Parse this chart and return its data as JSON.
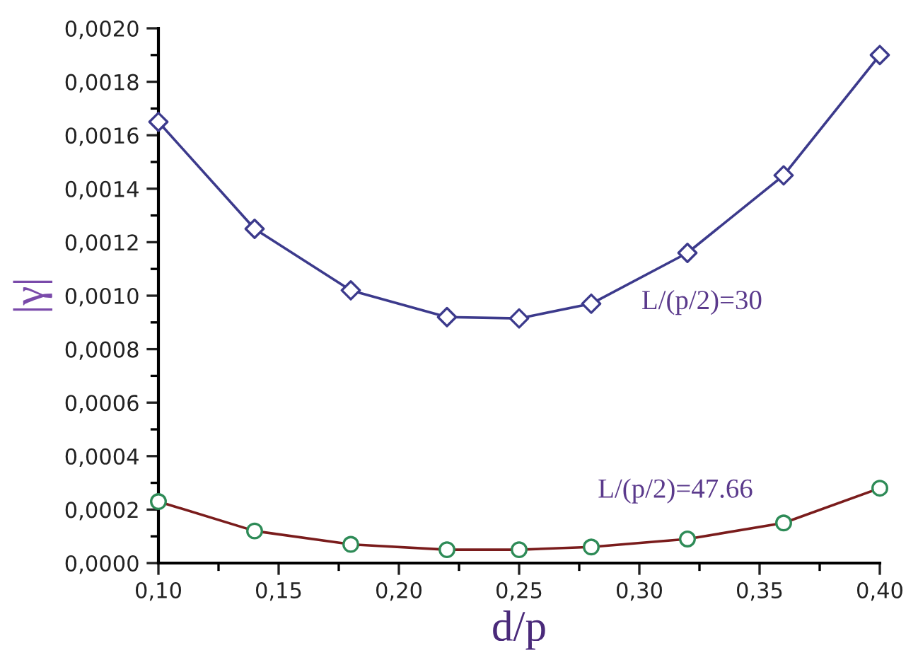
{
  "chart_data": {
    "type": "line",
    "xlabel": "d/p",
    "ylabel": "|γ|",
    "x": [
      0.1,
      0.14,
      0.18,
      0.22,
      0.25,
      0.28,
      0.32,
      0.36,
      0.4
    ],
    "series": [
      {
        "name": "L/(p/2)=30",
        "color": "#3c3a8c",
        "marker": "diamond",
        "values": [
          0.00165,
          0.00125,
          0.00102,
          0.00092,
          0.000915,
          0.00097,
          0.00116,
          0.00145,
          0.0019
        ]
      },
      {
        "name": "L/(p/2)=47.66",
        "color": "#7a1c1c",
        "colors": [
          "#2e8b57",
          "#2e8b57",
          "#2e8b57",
          "#2e8b57",
          "#2e8b57",
          "#2e8b57",
          "#2e8b57",
          "#2e8b57",
          "#2e8b57"
        ],
        "marker": "circle",
        "values": [
          0.00023,
          0.00012,
          7e-05,
          5e-05,
          5e-05,
          6e-05,
          9e-05,
          0.00015,
          0.00028
        ]
      }
    ],
    "xlim": [
      0.1,
      0.4
    ],
    "xticks": [
      {
        "value": 0.1,
        "label": "0,10"
      },
      {
        "value": 0.15,
        "label": "0,15"
      },
      {
        "value": 0.2,
        "label": "0,20"
      },
      {
        "value": 0.25,
        "label": "0,25"
      },
      {
        "value": 0.3,
        "label": "0,30"
      },
      {
        "value": 0.35,
        "label": "0,35"
      },
      {
        "value": 0.4,
        "label": "0,40"
      }
    ],
    "ylim": [
      0,
      0.002
    ],
    "yticks": [
      {
        "value": 0,
        "label": "0,0000"
      },
      {
        "value": 0.0002,
        "label": "0,0002"
      },
      {
        "value": 0.0004,
        "label": "0,0004"
      },
      {
        "value": 0.0006,
        "label": "0,0006"
      },
      {
        "value": 0.0008,
        "label": "0,0008"
      },
      {
        "value": 0.001,
        "label": "0,0010"
      },
      {
        "value": 0.0012,
        "label": "0,0012"
      },
      {
        "value": 0.0014,
        "label": "0,0014"
      },
      {
        "value": 0.0016,
        "label": "0,0016"
      },
      {
        "value": 0.0018,
        "label": "0,0018"
      },
      {
        "value": 0.002,
        "label": "0,0020"
      }
    ],
    "grid": false,
    "legend": false,
    "line_style": "solid"
  }
}
